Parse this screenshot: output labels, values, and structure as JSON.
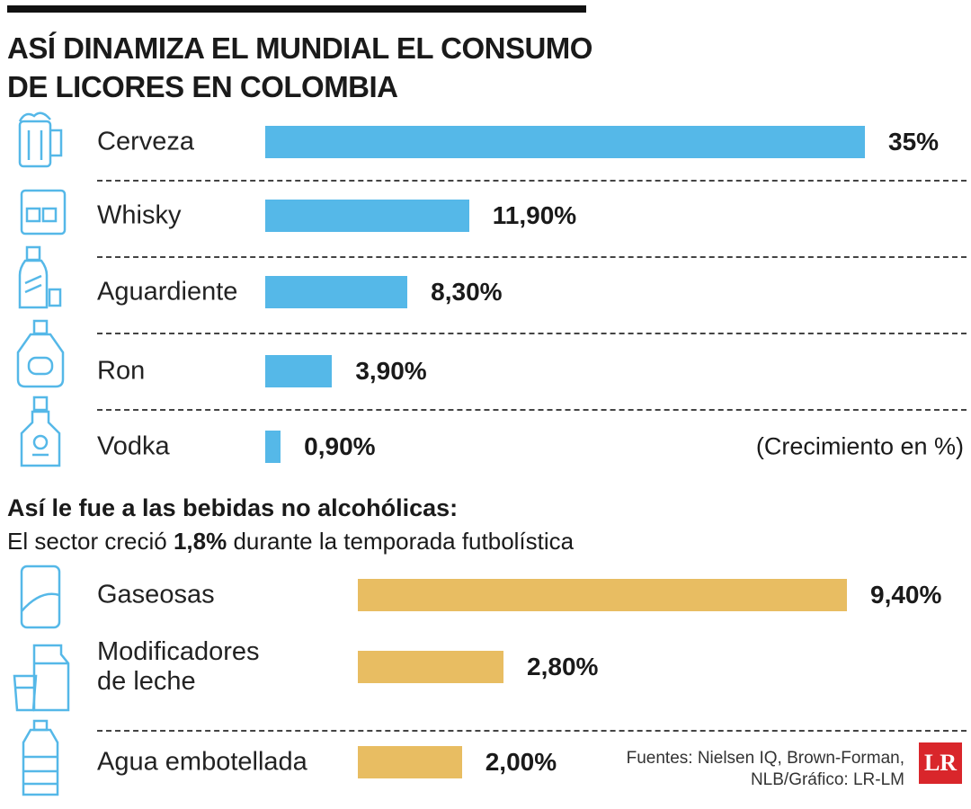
{
  "chart_data": [
    {
      "type": "bar",
      "orientation": "horizontal",
      "title": "ASÍ DINAMIZA EL MUNDIAL EL CONSUMO DE LICORES EN COLOMBIA",
      "categories": [
        "Cerveza",
        "Whisky",
        "Aguardiente",
        "Ron",
        "Vodka"
      ],
      "values": [
        35,
        11.9,
        8.3,
        3.9,
        0.9
      ],
      "value_labels": [
        "35%",
        "11,90%",
        "8,30%",
        "3,90%",
        "0,90%"
      ],
      "color": "#55b8e8",
      "note": "(Crecimiento en %)"
    },
    {
      "type": "bar",
      "orientation": "horizontal",
      "title": "Así le fue a las bebidas no alcohólicas:",
      "subtitle": [
        "El sector creció ",
        "1,8%",
        " durante la temporada futbolística"
      ],
      "categories": [
        "Gaseosas",
        "Modificadores\nde leche",
        "Agua embotellada"
      ],
      "values": [
        9.4,
        2.8,
        2.0
      ],
      "value_labels": [
        "9,40%",
        "2,80%",
        "2,00%"
      ],
      "color": "#e8bd62"
    }
  ],
  "source": "Fuentes: Nielsen IQ, Brown-Forman,\nNLB/Gráfico: LR-LM",
  "logo": "LR"
}
